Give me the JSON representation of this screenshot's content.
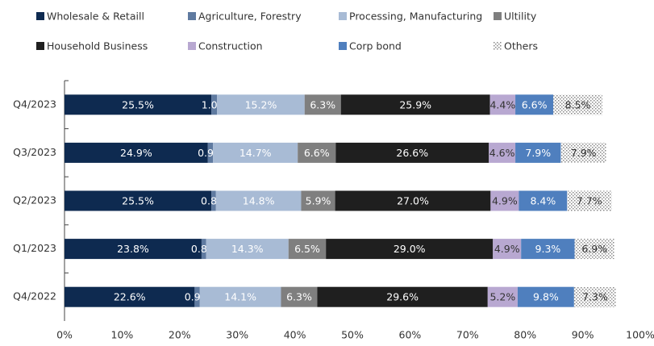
{
  "chart_data": {
    "type": "stacked_barh",
    "categories": [
      "Q4/2023",
      "Q3/2023",
      "Q2/2023",
      "Q1/2023",
      "Q4/2022"
    ],
    "series": [
      {
        "name": "Wholesale & Retaill",
        "color": "#0e2a50",
        "values": [
          25.5,
          24.9,
          25.5,
          23.8,
          22.6
        ],
        "value_labels": [
          "25.5%",
          "24.9%",
          "25.5%",
          "23.8%",
          "22.6%"
        ]
      },
      {
        "name": "Agriculture, Forestry",
        "color": "#5f7aa0",
        "values": [
          1.0,
          0.9,
          0.8,
          0.8,
          0.9
        ],
        "value_labels": [
          "1.0%",
          "0.9%",
          "0.8%",
          "0.8%",
          "0.9%"
        ]
      },
      {
        "name": "Processing, Manufacturing",
        "color": "#a8bbd5",
        "values": [
          15.2,
          14.7,
          14.8,
          14.3,
          14.1
        ],
        "value_labels": [
          "15.2%",
          "14.7%",
          "14.8%",
          "14.3%",
          "14.1%"
        ]
      },
      {
        "name": "Ultility",
        "color": "#7f7f7f",
        "values": [
          6.3,
          6.6,
          5.9,
          6.5,
          6.3
        ],
        "value_labels": [
          "6.3%",
          "6.6%",
          "5.9%",
          "6.5%",
          "6.3%"
        ]
      },
      {
        "name": "Household Business",
        "color": "#1f1f1f",
        "values": [
          25.9,
          26.6,
          27.0,
          29.0,
          29.6
        ],
        "value_labels": [
          "25.9%",
          "26.6%",
          "27.0%",
          "29.0%",
          "29.6%"
        ]
      },
      {
        "name": "Construction",
        "color": "#b8a8d1",
        "values": [
          4.4,
          4.6,
          4.9,
          4.9,
          5.2
        ],
        "value_labels": [
          "4.4%",
          "4.6%",
          "4.9%",
          "4.9%",
          "5.2%"
        ]
      },
      {
        "name": "Corp bond",
        "color": "#4f7fbe",
        "values": [
          6.6,
          7.9,
          8.4,
          9.3,
          9.8
        ],
        "value_labels": [
          "6.6%",
          "7.9%",
          "8.4%",
          "9.3%",
          "9.8%"
        ]
      },
      {
        "name": "Others",
        "color": "#9a9a9a",
        "hatch": true,
        "values": [
          8.5,
          7.9,
          7.7,
          6.9,
          7.3
        ],
        "value_labels": [
          "8.5%",
          "7.9%",
          "7.7%",
          "6.9%",
          "7.3%"
        ]
      }
    ],
    "xlim": [
      0,
      100
    ],
    "xticks": [
      {
        "value": 0,
        "label": "0%"
      },
      {
        "value": 10,
        "label": "10%"
      },
      {
        "value": 20,
        "label": "20%"
      },
      {
        "value": 30,
        "label": "30%"
      },
      {
        "value": 40,
        "label": "40%"
      },
      {
        "value": 50,
        "label": "50%"
      },
      {
        "value": 60,
        "label": "60%"
      },
      {
        "value": 70,
        "label": "70%"
      },
      {
        "value": 80,
        "label": "80%"
      },
      {
        "value": 90,
        "label": "90%"
      },
      {
        "value": 100,
        "label": "100%"
      }
    ],
    "legend": "top"
  }
}
